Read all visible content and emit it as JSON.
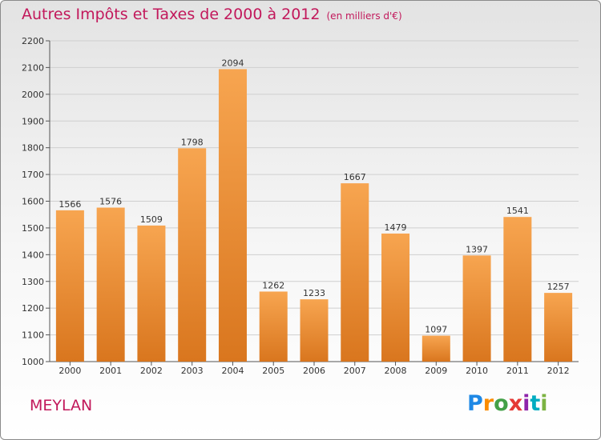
{
  "header": {
    "title": "Autres Impôts et Taxes de 2000 à 2012",
    "unit": "(en milliers d'€)"
  },
  "footer": {
    "city": "MEYLAN",
    "logo": "Proxiti"
  },
  "chart_data": {
    "type": "bar",
    "categories": [
      "2000",
      "2001",
      "2002",
      "2003",
      "2004",
      "2005",
      "2006",
      "2007",
      "2008",
      "2009",
      "2010",
      "2011",
      "2012"
    ],
    "values": [
      1566,
      1576,
      1509,
      1798,
      2094,
      1262,
      1233,
      1667,
      1479,
      1097,
      1397,
      1541,
      1257
    ],
    "title": "Autres Impôts et Taxes de 2000 à 2012",
    "ylim": [
      1000,
      2200
    ],
    "yticks": [
      1000,
      1100,
      1200,
      1300,
      1400,
      1500,
      1600,
      1700,
      1800,
      1900,
      2000,
      2100,
      2200
    ],
    "grid": true,
    "colors": {
      "bar_top": "#f7a550",
      "bar_bottom": "#d9761e",
      "grid": "#cfcfcf",
      "axis": "#555555",
      "title": "#c2185b"
    }
  }
}
